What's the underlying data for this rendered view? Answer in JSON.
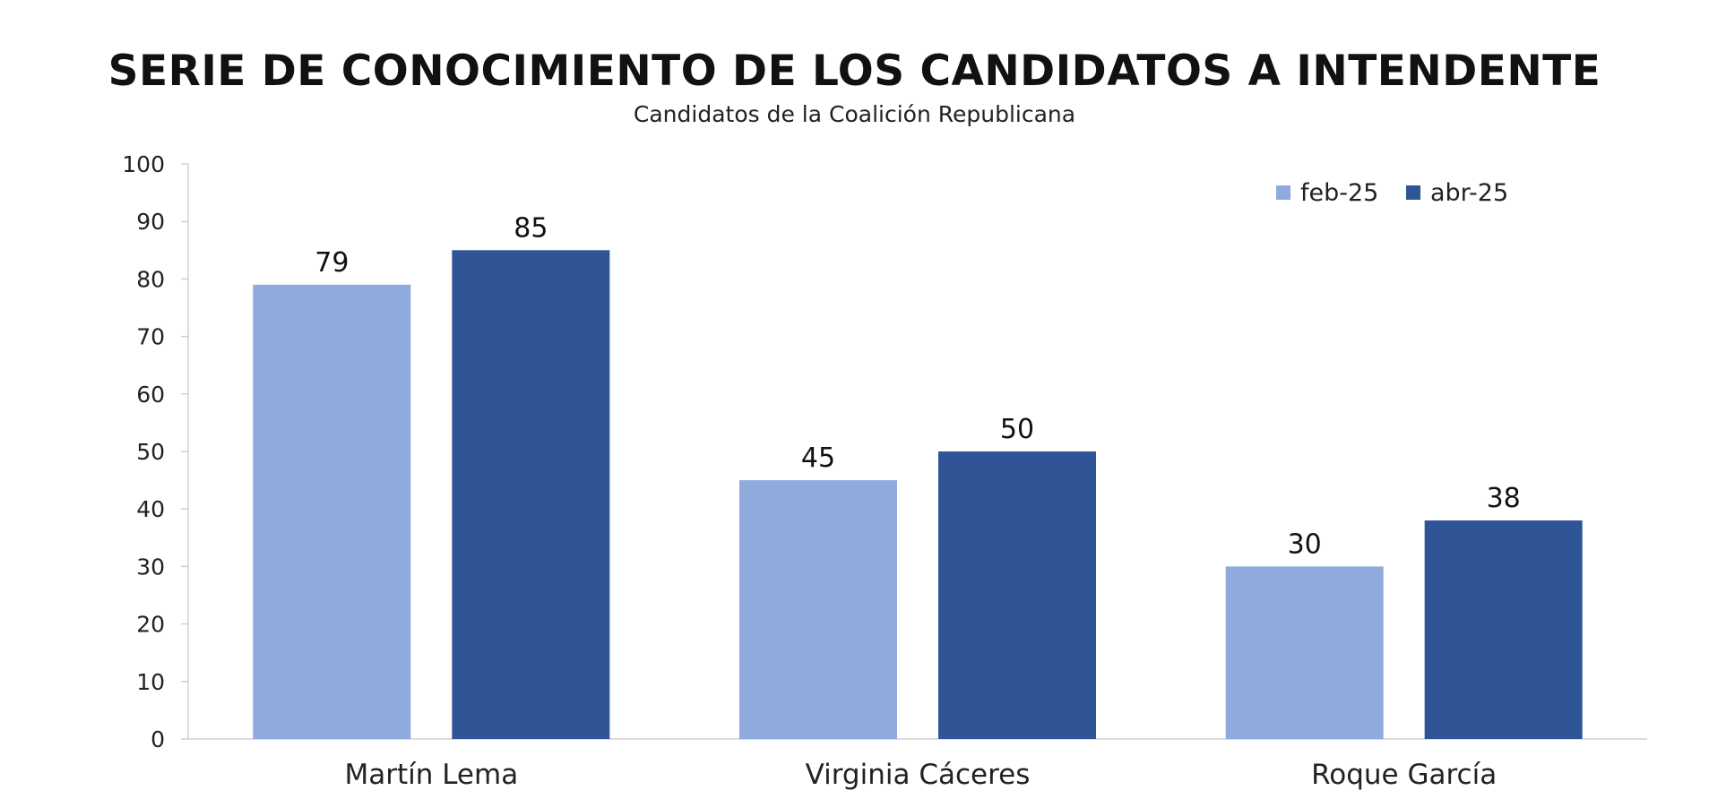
{
  "chart_data": {
    "type": "bar",
    "title": "SERIE DE CONOCIMIENTO DE LOS CANDIDATOS A INTENDENTE",
    "subtitle": "Candidatos de la Coalición Republicana",
    "categories": [
      "Martín Lema",
      "Virginia Cáceres",
      "Roque García"
    ],
    "series": [
      {
        "name": "feb-25",
        "color": "#8FAADC",
        "values": [
          79,
          45,
          30
        ]
      },
      {
        "name": "abr-25",
        "color": "#2F5597",
        "values": [
          85,
          50,
          38
        ]
      }
    ],
    "ylim": [
      0,
      100
    ],
    "yticks": [
      0,
      10,
      20,
      30,
      40,
      50,
      60,
      70,
      80,
      90,
      100
    ],
    "xlabel": "",
    "ylabel": "",
    "grid": false,
    "legend": "top-right",
    "data_labels": true
  }
}
